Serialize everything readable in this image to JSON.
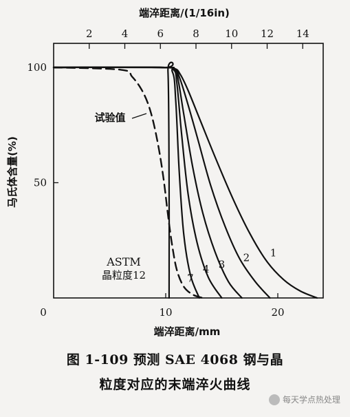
{
  "chart_data": {
    "type": "line",
    "title": "端淬距离/(1/16in)",
    "xlabel": "端淬距离/mm",
    "ylabel": "马氏体含量(%)",
    "xlim": [
      0,
      25
    ],
    "ylim": [
      0,
      100
    ],
    "x_ticks": [
      "0",
      "10",
      "20"
    ],
    "x_tick_values": [
      0,
      10,
      20
    ],
    "top_ticks": [
      "2",
      "4",
      "6",
      "8",
      "10",
      "12",
      "14"
    ],
    "top_tick_values_16in": [
      2,
      4,
      6,
      8,
      10,
      12,
      14
    ],
    "y_ticks": [
      "50",
      "100"
    ],
    "y_tick_values": [
      50,
      100
    ],
    "grid": false,
    "annotation_test": "试验值",
    "astm_label_line1": "ASTM",
    "astm_label_line2": "晶粒度12",
    "series": [
      {
        "name": "1",
        "style": "solid",
        "x": [
          0,
          9.5,
          10.8,
          11.3,
          12.0,
          13.0,
          14.5,
          16.0,
          17.5,
          19.0,
          20.5,
          22.0,
          23.5
        ],
        "y": [
          100,
          100,
          99.5,
          97,
          90,
          78,
          60,
          43,
          28,
          16,
          8,
          3,
          0
        ]
      },
      {
        "name": "2",
        "style": "solid",
        "x": [
          0,
          9.5,
          10.8,
          11.2,
          11.8,
          12.8,
          14.0,
          15.3,
          16.6,
          18.0,
          19.3
        ],
        "y": [
          100,
          100,
          99.5,
          96,
          87,
          70,
          49,
          31,
          17,
          7,
          0
        ]
      },
      {
        "name": "3",
        "style": "solid",
        "x": [
          0,
          9.5,
          10.8,
          11.1,
          11.6,
          12.4,
          13.3,
          14.4,
          15.6,
          16.8
        ],
        "y": [
          100,
          100,
          99,
          95,
          80,
          57,
          37,
          20,
          7,
          0
        ]
      },
      {
        "name": "4",
        "style": "solid",
        "x": [
          0,
          9.5,
          10.7,
          11.0,
          11.4,
          12.0,
          12.8,
          13.8,
          15.0
        ],
        "y": [
          100,
          100,
          99,
          93,
          72,
          45,
          24,
          9,
          0
        ]
      },
      {
        "name": "7",
        "style": "solid",
        "x": [
          0,
          9.5,
          10.6,
          10.9,
          11.2,
          11.6,
          12.2,
          13.0
        ],
        "y": [
          100,
          100,
          98,
          85,
          55,
          28,
          10,
          0
        ]
      },
      {
        "name": "12",
        "style": "solid",
        "x": [
          0,
          9.8,
          10.2,
          10.3,
          10.3
        ],
        "y": [
          100,
          100,
          98,
          50,
          0
        ]
      },
      {
        "name": "试验值",
        "style": "dashed",
        "x": [
          0,
          6.0,
          7.0,
          8.0,
          8.7,
          9.3,
          9.8,
          10.2,
          10.6,
          11.0,
          11.6,
          12.4,
          13.3
        ],
        "y": [
          100,
          99,
          96,
          89,
          80,
          67,
          52,
          36,
          22,
          12,
          5,
          1.5,
          0
        ]
      }
    ],
    "curve_labels": [
      {
        "text": "1",
        "x": 19.6,
        "y": 18
      },
      {
        "text": "2",
        "x": 17.2,
        "y": 16
      },
      {
        "text": "3",
        "x": 15.0,
        "y": 13
      },
      {
        "text": "4",
        "x": 13.6,
        "y": 11
      },
      {
        "text": "7",
        "x": 12.2,
        "y": 7
      }
    ]
  },
  "caption": {
    "line1": "图 1-109   预测 SAE 4068 钢与晶",
    "line2": "粒度对应的末端淬火曲线"
  },
  "watermark": "每天学点热处理"
}
